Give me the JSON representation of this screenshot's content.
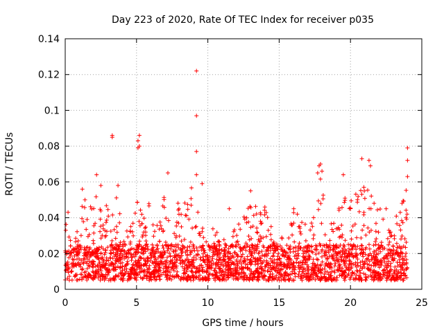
{
  "chart_data": {
    "type": "scatter",
    "title": "Day 223 of 2020, Rate Of TEC Index for receiver p035",
    "xlabel": "GPS time / hours",
    "ylabel": "ROTI / TECUs",
    "xlim": [
      0,
      25
    ],
    "ylim": [
      0,
      0.14
    ],
    "x_ticks": [
      0,
      5,
      10,
      15,
      20,
      25
    ],
    "x_tick_labels": [
      "0",
      "5",
      "10",
      "15",
      "20",
      "25"
    ],
    "y_ticks": [
      0,
      0.02,
      0.04,
      0.06,
      0.08,
      0.1,
      0.12,
      0.14
    ],
    "y_tick_labels": [
      "0",
      "0.02",
      "0.04",
      "0.06",
      "0.08",
      "0.1",
      "0.12",
      "0.14"
    ],
    "grid": true,
    "marker": "+",
    "marker_color": "#ff0000",
    "series": [
      {
        "name": "ROTI",
        "x_range": [
          0,
          24
        ],
        "baseline_band": [
          0.005,
          0.025
        ],
        "envelope": [
          [
            0.0,
            0.044
          ],
          [
            0.3,
            0.03
          ],
          [
            0.6,
            0.022
          ],
          [
            1.0,
            0.042
          ],
          [
            1.3,
            0.056
          ],
          [
            1.6,
            0.045
          ],
          [
            2.0,
            0.05
          ],
          [
            2.2,
            0.064
          ],
          [
            2.5,
            0.045
          ],
          [
            3.0,
            0.05
          ],
          [
            3.4,
            0.05
          ],
          [
            3.7,
            0.058
          ],
          [
            4.0,
            0.03
          ],
          [
            4.5,
            0.035
          ],
          [
            5.0,
            0.05
          ],
          [
            5.5,
            0.045
          ],
          [
            5.8,
            0.055
          ],
          [
            6.2,
            0.04
          ],
          [
            6.6,
            0.04
          ],
          [
            7.2,
            0.064
          ],
          [
            7.6,
            0.05
          ],
          [
            8.0,
            0.052
          ],
          [
            8.6,
            0.055
          ],
          [
            9.0,
            0.06
          ],
          [
            9.4,
            0.05
          ],
          [
            9.8,
            0.03
          ],
          [
            10.3,
            0.05
          ],
          [
            10.8,
            0.03
          ],
          [
            11.5,
            0.03
          ],
          [
            12.0,
            0.035
          ],
          [
            12.5,
            0.04
          ],
          [
            13.0,
            0.055
          ],
          [
            13.5,
            0.045
          ],
          [
            14.0,
            0.045
          ],
          [
            14.5,
            0.035
          ],
          [
            15.0,
            0.03
          ],
          [
            15.5,
            0.035
          ],
          [
            16.0,
            0.05
          ],
          [
            16.5,
            0.04
          ],
          [
            17.0,
            0.035
          ],
          [
            17.5,
            0.05
          ],
          [
            17.8,
            0.068
          ],
          [
            18.2,
            0.06
          ],
          [
            18.6,
            0.045
          ],
          [
            19.0,
            0.04
          ],
          [
            19.5,
            0.055
          ],
          [
            20.0,
            0.05
          ],
          [
            20.4,
            0.055
          ],
          [
            20.8,
            0.06
          ],
          [
            21.2,
            0.065
          ],
          [
            21.6,
            0.065
          ],
          [
            22.0,
            0.05
          ],
          [
            22.5,
            0.035
          ],
          [
            23.0,
            0.04
          ],
          [
            23.5,
            0.045
          ],
          [
            24.0,
            0.06
          ]
        ],
        "outliers": [
          [
            3.3,
            0.086
          ],
          [
            3.3,
            0.085
          ],
          [
            5.2,
            0.086
          ],
          [
            5.1,
            0.083
          ],
          [
            5.2,
            0.08
          ],
          [
            5.1,
            0.079
          ],
          [
            9.2,
            0.122
          ],
          [
            9.2,
            0.097
          ],
          [
            9.2,
            0.077
          ],
          [
            9.2,
            0.064
          ],
          [
            9.6,
            0.059
          ],
          [
            7.2,
            0.065
          ],
          [
            2.2,
            0.064
          ],
          [
            17.8,
            0.069
          ],
          [
            17.9,
            0.07
          ],
          [
            18.0,
            0.066
          ],
          [
            17.7,
            0.065
          ],
          [
            20.8,
            0.073
          ],
          [
            21.3,
            0.072
          ],
          [
            21.4,
            0.069
          ],
          [
            24.0,
            0.079
          ],
          [
            24.0,
            0.072
          ],
          [
            24.0,
            0.063
          ],
          [
            19.5,
            0.064
          ],
          [
            13.0,
            0.055
          ],
          [
            11.5,
            0.045
          ],
          [
            14.0,
            0.046
          ],
          [
            22.5,
            0.045
          ],
          [
            0.2,
            0.043
          ],
          [
            3.7,
            0.058
          ],
          [
            1.2,
            0.056
          ],
          [
            2.5,
            0.058
          ]
        ]
      }
    ]
  }
}
